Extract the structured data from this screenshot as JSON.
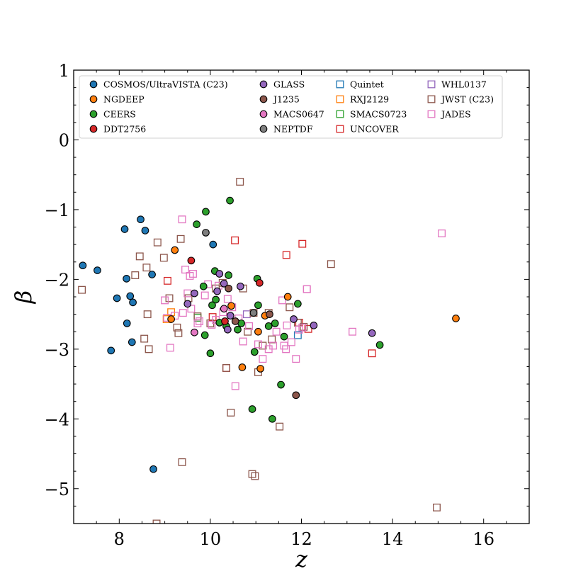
{
  "chart_data": {
    "type": "scatter",
    "xlabel": "z",
    "ylabel": "β",
    "xlim": [
      7.0,
      17.0
    ],
    "ylim": [
      -5.5,
      1.0
    ],
    "xticks": [
      8,
      10,
      12,
      14,
      16
    ],
    "yticks": [
      1,
      0,
      -1,
      -2,
      -3,
      -4,
      -5
    ],
    "ytick_labels": [
      "1",
      "0",
      "−1",
      "−2",
      "−3",
      "−4",
      "−5"
    ],
    "grid": false,
    "legend_placement": "top",
    "series": [
      {
        "name": "COSMOS/UltraVISTA (C23)",
        "marker": "circle",
        "color": "#1f77b4",
        "x": [
          7.2,
          7.52,
          7.82,
          7.95,
          8.12,
          8.16,
          8.17,
          8.24,
          8.3,
          8.28,
          8.47,
          8.57,
          8.72,
          8.75,
          10.06
        ],
        "y": [
          -1.8,
          -1.87,
          -3.02,
          -2.27,
          -1.28,
          -1.99,
          -2.63,
          -2.24,
          -2.33,
          -2.9,
          -1.14,
          -1.3,
          -1.93,
          -4.72,
          -1.5
        ]
      },
      {
        "name": "NGDEEP",
        "marker": "circle",
        "color": "#ff7f0e",
        "x": [
          9.14,
          9.22,
          10.46,
          10.7,
          11.05,
          11.1,
          11.2,
          11.7,
          15.39
        ],
        "y": [
          -2.57,
          -1.58,
          -2.38,
          -3.26,
          -2.75,
          -3.28,
          -2.52,
          -2.25,
          -2.56
        ]
      },
      {
        "name": "CEERS",
        "marker": "circle",
        "color": "#2ca02c",
        "x": [
          9.7,
          9.85,
          9.88,
          9.9,
          10.0,
          10.04,
          10.1,
          10.12,
          10.2,
          10.35,
          10.4,
          10.43,
          10.6,
          10.68,
          10.92,
          10.97,
          11.03,
          11.05,
          11.28,
          11.36,
          11.42,
          11.55,
          11.62,
          11.92,
          13.72
        ],
        "y": [
          -1.21,
          -2.1,
          -2.8,
          -1.03,
          -3.06,
          -2.37,
          -1.88,
          -2.29,
          -2.62,
          -2.67,
          -1.94,
          -0.87,
          -2.72,
          -2.63,
          -3.86,
          -3.04,
          -1.99,
          -2.37,
          -2.67,
          -4.0,
          -2.63,
          -3.51,
          -2.82,
          -2.35,
          -2.94
        ]
      },
      {
        "name": "DDT2756",
        "marker": "circle",
        "color": "#d62728",
        "x": [
          9.58,
          10.32,
          11.08
        ],
        "y": [
          -1.73,
          -2.6,
          -2.05
        ]
      },
      {
        "name": "GLASS",
        "marker": "circle",
        "color": "#9467bd",
        "x": [
          9.5,
          9.65,
          10.15,
          10.2,
          10.3,
          10.38,
          10.44,
          10.66,
          11.83,
          12.27,
          13.55
        ],
        "y": [
          -2.35,
          -2.2,
          -2.17,
          -1.92,
          -2.06,
          -2.72,
          -2.52,
          -2.1,
          -2.57,
          -2.66,
          -2.77
        ]
      },
      {
        "name": "J1235",
        "marker": "circle",
        "color": "#8c564b",
        "x": [
          10.4,
          10.55,
          11.3,
          11.88
        ],
        "y": [
          -2.13,
          -2.6,
          -2.5,
          -3.66
        ]
      },
      {
        "name": "MACS0647",
        "marker": "circle",
        "color": "#e377c2",
        "x": [
          9.65,
          10.3
        ],
        "y": [
          -2.76,
          -2.42
        ]
      },
      {
        "name": "NEPTDF",
        "marker": "circle",
        "color": "#7f7f7f",
        "x": [
          9.9,
          10.95
        ],
        "y": [
          -1.33,
          -2.48
        ]
      },
      {
        "name": "Quintet",
        "marker": "square",
        "color": "#1f77b4",
        "x": [
          11.92
        ],
        "y": [
          -2.8
        ]
      },
      {
        "name": "RXJ2129",
        "marker": "square",
        "color": "#ff7f0e",
        "x": [
          9.04,
          9.14
        ],
        "y": [
          -2.57,
          -2.47
        ]
      },
      {
        "name": "SMACS0723",
        "marker": "square",
        "color": "#2ca02c",
        "x": [
          9.72
        ],
        "y": [
          -2.55
        ]
      },
      {
        "name": "UNCOVER",
        "marker": "square",
        "color": "#d62728",
        "x": [
          9.06,
          10.05,
          10.35,
          10.54,
          11.67,
          12.02,
          13.55,
          11.95,
          12.15
        ],
        "y": [
          -2.02,
          -2.54,
          -3.27,
          -1.44,
          -1.65,
          -1.49,
          -3.06,
          -2.62,
          -2.71
        ]
      },
      {
        "name": "WHL0137",
        "marker": "square",
        "color": "#9467bd",
        "x": [
          10.8
        ],
        "y": [
          -2.5
        ]
      },
      {
        "name": "JWST (C23)",
        "marker": "square",
        "color": "#8c564b",
        "x": [
          7.18,
          8.35,
          8.45,
          8.55,
          8.6,
          8.62,
          8.65,
          8.82,
          8.84,
          8.98,
          9.1,
          9.27,
          9.3,
          9.35,
          9.38,
          9.52,
          9.72,
          10.0,
          10.12,
          10.27,
          10.35,
          10.45,
          10.65,
          10.72,
          10.82,
          10.95,
          11.05,
          11.15,
          11.28,
          11.35,
          11.52,
          11.74,
          11.92,
          12.05,
          12.65,
          14.97,
          10.92,
          10.98
        ],
        "y": [
          -2.15,
          -1.94,
          -1.67,
          -2.85,
          -1.83,
          -2.5,
          -3.0,
          -5.5,
          -1.47,
          -1.69,
          -2.27,
          -2.69,
          -2.77,
          -1.42,
          -4.62,
          -2.27,
          -2.53,
          -2.63,
          -2.13,
          -2.05,
          -3.27,
          -3.91,
          -0.6,
          -2.13,
          -2.75,
          -2.48,
          -3.33,
          -2.95,
          -2.48,
          -2.86,
          -4.11,
          -2.4,
          -2.62,
          -2.68,
          -1.78,
          -5.27,
          -4.79,
          -4.82
        ]
      },
      {
        "name": "JADES",
        "marker": "square",
        "color": "#e377c2",
        "x": [
          9.0,
          9.05,
          9.12,
          9.22,
          9.38,
          9.4,
          9.45,
          9.5,
          9.55,
          9.58,
          9.62,
          9.72,
          9.76,
          9.88,
          9.95,
          10.03,
          10.12,
          10.18,
          10.28,
          10.38,
          10.48,
          10.55,
          10.62,
          10.72,
          10.85,
          11.05,
          11.15,
          11.28,
          11.38,
          11.45,
          11.58,
          11.62,
          11.66,
          11.68,
          11.78,
          11.88,
          11.95,
          12.02,
          12.12,
          13.12,
          15.08,
          12.12
        ],
        "y": [
          -2.3,
          -2.55,
          -2.98,
          -2.52,
          -1.14,
          -2.48,
          -1.86,
          -2.2,
          -1.95,
          -2.42,
          -1.92,
          -2.63,
          -2.6,
          -2.23,
          -2.07,
          -2.65,
          -2.58,
          -2.09,
          -2.47,
          -2.28,
          -2.4,
          -3.53,
          -2.56,
          -2.89,
          -2.67,
          -2.93,
          -3.14,
          -3.0,
          -2.95,
          -2.75,
          -2.3,
          -2.95,
          -3.0,
          -2.66,
          -2.9,
          -3.14,
          -2.72,
          -2.69,
          -2.14,
          -2.75,
          -1.34,
          -2.14
        ]
      }
    ]
  }
}
